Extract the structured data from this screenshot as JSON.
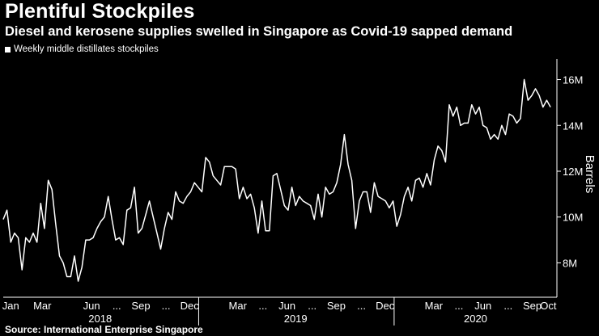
{
  "header": {
    "title": "Plentiful Stockpiles",
    "subtitle": "Diesel and kerosene supplies swelled in Singapore as Covid-19 sapped demand"
  },
  "legend": {
    "label": "Weekly middle distillates stockpiles"
  },
  "source": "Source: International Enterprise Singapore",
  "colors": {
    "background": "#000000",
    "line": "#ffffff",
    "axis": "#ffffff"
  },
  "chart_data": {
    "type": "line",
    "title": "Plentiful Stockpiles",
    "subtitle": "Diesel and kerosene supplies swelled in Singapore as Covid-19 sapped demand",
    "ylabel": "Barrels",
    "xlabel": "",
    "y_unit": "millions of barrels",
    "ylim": [
      6.5,
      16.9
    ],
    "yticks": [
      8,
      10,
      12,
      14,
      16
    ],
    "ytick_labels": [
      "8M",
      "10M",
      "12M",
      "14M",
      "16M"
    ],
    "grid": false,
    "legend_position": "top-left",
    "x_start": "2018-01-01",
    "x_end": "2020-10-31",
    "month_labels": [
      {
        "label": "Jan",
        "date": "2018-01-15"
      },
      {
        "label": "Mar",
        "date": "2018-03-15"
      },
      {
        "label": "Jun",
        "date": "2018-06-15"
      },
      {
        "label": "Sep",
        "date": "2018-09-15"
      },
      {
        "label": "Dec",
        "date": "2018-12-15"
      },
      {
        "label": "Mar",
        "date": "2019-03-15"
      },
      {
        "label": "Jun",
        "date": "2019-06-15"
      },
      {
        "label": "Sep",
        "date": "2019-09-15"
      },
      {
        "label": "Dec",
        "date": "2019-12-15"
      },
      {
        "label": "Mar",
        "date": "2020-03-15"
      },
      {
        "label": "Jun",
        "date": "2020-06-15"
      },
      {
        "label": "Sep",
        "date": "2020-09-15"
      },
      {
        "label": "Oct",
        "date": "2020-10-15"
      }
    ],
    "ellipsis_markers": [
      "2018-08-01",
      "2018-11-01",
      "2019-05-01",
      "2019-08-01",
      "2019-11-01",
      "2020-05-01",
      "2020-08-01"
    ],
    "year_labels": [
      {
        "label": "2018",
        "date": "2018-07-01"
      },
      {
        "label": "2019",
        "date": "2019-07-01"
      },
      {
        "label": "2020",
        "date": "2020-06-01"
      }
    ],
    "series": [
      {
        "name": "Weekly middle distillates stockpiles",
        "start_date": "2018-01-01",
        "week_step_days": 7,
        "values": [
          9.9,
          10.3,
          8.9,
          9.3,
          9.1,
          7.7,
          9.1,
          8.9,
          9.3,
          8.9,
          10.6,
          9.5,
          11.6,
          11.2,
          9.7,
          8.3,
          8.0,
          7.4,
          7.4,
          8.3,
          7.2,
          7.8,
          9.0,
          9.0,
          9.1,
          9.5,
          9.8,
          10.0,
          10.9,
          9.9,
          9.0,
          9.1,
          8.8,
          10.3,
          10.4,
          11.3,
          9.3,
          9.5,
          10.1,
          10.7,
          10.0,
          9.3,
          8.6,
          9.5,
          10.2,
          9.9,
          11.1,
          10.7,
          10.6,
          10.9,
          11.1,
          11.5,
          11.3,
          11.1,
          12.6,
          12.4,
          11.8,
          11.6,
          11.4,
          12.2,
          12.2,
          12.2,
          12.1,
          10.8,
          11.3,
          10.8,
          11.0,
          10.4,
          9.3,
          10.7,
          9.4,
          9.4,
          11.8,
          11.9,
          11.2,
          10.5,
          10.3,
          11.3,
          10.5,
          10.9,
          10.7,
          10.6,
          10.5,
          9.9,
          11.0,
          10.0,
          11.3,
          11.0,
          11.1,
          11.5,
          12.3,
          13.6,
          12.3,
          11.6,
          9.5,
          10.7,
          11.1,
          11.1,
          10.2,
          11.5,
          10.9,
          10.8,
          10.7,
          10.4,
          10.7,
          9.6,
          10.1,
          10.9,
          11.3,
          10.7,
          11.6,
          11.7,
          11.3,
          11.9,
          11.4,
          12.5,
          13.1,
          12.9,
          12.4,
          14.9,
          14.4,
          14.8,
          14.0,
          14.1,
          14.1,
          14.9,
          14.5,
          14.8,
          14.0,
          13.9,
          13.4,
          13.6,
          13.4,
          14.0,
          13.6,
          14.5,
          14.4,
          14.1,
          14.3,
          16.0,
          15.1,
          15.3,
          15.6,
          15.3,
          14.8,
          15.1,
          14.8
        ]
      }
    ]
  }
}
